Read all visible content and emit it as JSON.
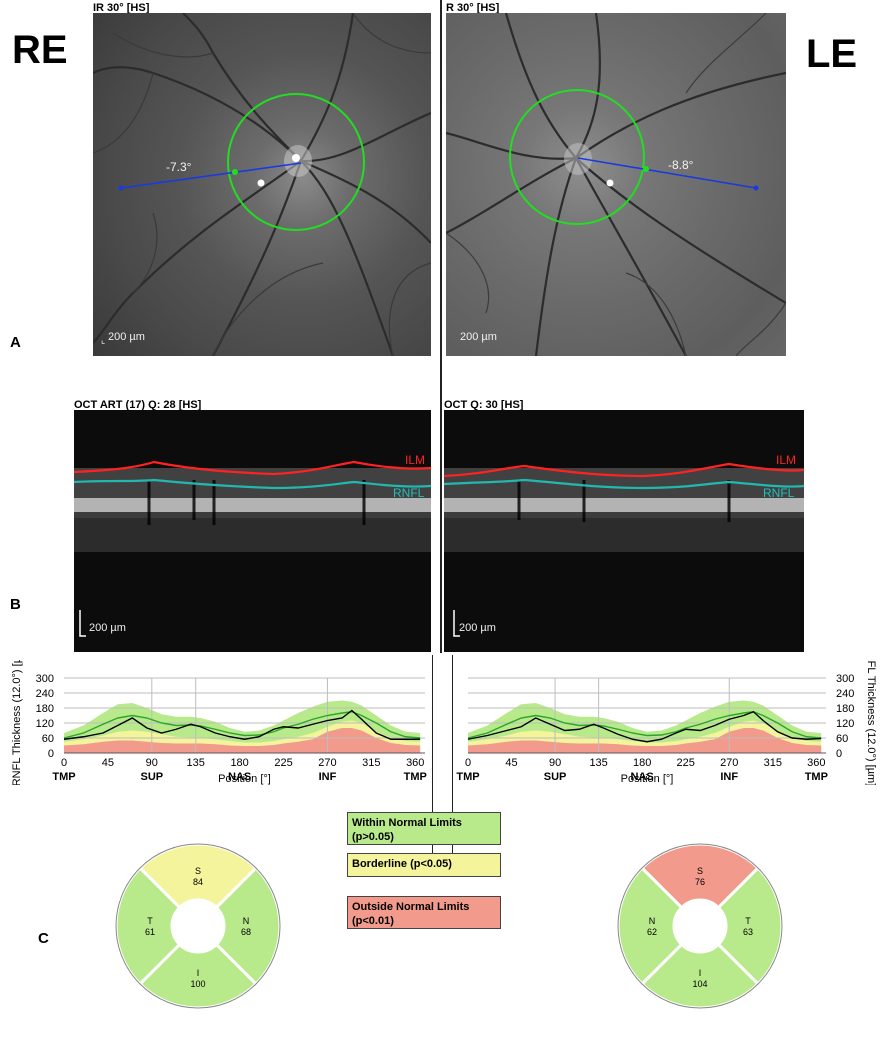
{
  "eyes": {
    "right": "RE",
    "left": "LE"
  },
  "panel_letters": {
    "a": "A",
    "b": "B",
    "c": "C"
  },
  "fundus": {
    "right": {
      "title": "IR 30° [HS]",
      "angle": "-7.3°",
      "scale": "200 µm"
    },
    "left": {
      "title": "R 30° [HS]",
      "angle": "-8.8°",
      "scale": "200 µm"
    }
  },
  "oct": {
    "right": {
      "title": "OCT ART (17) Q: 28 [HS]",
      "ilm": "ILM",
      "rnfl": "RNFL",
      "scale": "200 µm"
    },
    "left": {
      "title": "OCT Q: 30 [HS]",
      "ilm": "ILM",
      "rnfl": "RNFL",
      "scale": "200 µm"
    }
  },
  "chart_data": [
    {
      "type": "line",
      "eye": "RE",
      "xlabel": "Position [°]",
      "ylabel": "RNFL Thickness (12.0°) [µm]",
      "xlim": [
        0,
        370
      ],
      "ylim": [
        0,
        300
      ],
      "x_ticks": [
        0,
        45,
        90,
        135,
        180,
        225,
        270,
        315,
        360
      ],
      "y_ticks": [
        0,
        60,
        120,
        180,
        240,
        300
      ],
      "region_labels": [
        {
          "x": 0,
          "label": "TMP"
        },
        {
          "x": 90,
          "label": "SUP"
        },
        {
          "x": 180,
          "label": "NAS"
        },
        {
          "x": 270,
          "label": "INF"
        },
        {
          "x": 360,
          "label": "TMP"
        }
      ],
      "x": [
        0,
        20,
        40,
        55,
        70,
        85,
        100,
        115,
        130,
        140,
        155,
        170,
        185,
        200,
        215,
        225,
        240,
        255,
        270,
        285,
        295,
        305,
        320,
        335,
        350,
        365
      ],
      "bands": {
        "outside_upper": [
          30,
          35,
          45,
          50,
          50,
          45,
          40,
          38,
          38,
          38,
          35,
          30,
          28,
          28,
          32,
          38,
          45,
          55,
          85,
          100,
          100,
          90,
          60,
          40,
          32,
          30
        ],
        "borderline_upper": [
          45,
          55,
          70,
          85,
          90,
          85,
          75,
          65,
          62,
          60,
          55,
          48,
          42,
          42,
          48,
          55,
          65,
          80,
          105,
          125,
          130,
          120,
          85,
          60,
          48,
          45
        ],
        "normal_upper": [
          80,
          110,
          160,
          195,
          200,
          180,
          155,
          145,
          145,
          140,
          125,
          100,
          85,
          90,
          110,
          130,
          160,
          185,
          205,
          210,
          205,
          190,
          150,
          110,
          85,
          80
        ]
      },
      "series": [
        {
          "name": "Normal mean",
          "color": "#2aa52a",
          "values": [
            60,
            80,
            115,
            140,
            150,
            140,
            120,
            110,
            112,
            108,
            95,
            80,
            70,
            72,
            85,
            100,
            115,
            135,
            150,
            160,
            165,
            150,
            120,
            85,
            65,
            60
          ]
        },
        {
          "name": "Patient",
          "color": "#000000",
          "values": [
            55,
            65,
            80,
            110,
            140,
            100,
            80,
            95,
            115,
            105,
            80,
            65,
            55,
            65,
            95,
            105,
            100,
            115,
            130,
            140,
            170,
            135,
            80,
            55,
            55,
            55
          ]
        }
      ]
    },
    {
      "type": "line",
      "eye": "LE",
      "xlabel": "Position [°]",
      "ylabel": "RNFL Thickness (12.0°) [µm]",
      "xlim": [
        0,
        370
      ],
      "ylim": [
        0,
        300
      ],
      "x_ticks": [
        0,
        45,
        90,
        135,
        180,
        225,
        270,
        315,
        360
      ],
      "y_ticks": [
        0,
        60,
        120,
        180,
        240,
        300
      ],
      "region_labels": [
        {
          "x": 0,
          "label": "TMP"
        },
        {
          "x": 90,
          "label": "SUP"
        },
        {
          "x": 180,
          "label": "NAS"
        },
        {
          "x": 270,
          "label": "INF"
        },
        {
          "x": 360,
          "label": "TMP"
        }
      ],
      "x": [
        0,
        20,
        40,
        55,
        70,
        85,
        100,
        115,
        130,
        140,
        155,
        170,
        185,
        200,
        215,
        225,
        240,
        255,
        270,
        285,
        295,
        305,
        320,
        335,
        350,
        365
      ],
      "bands": {
        "outside_upper": [
          30,
          35,
          45,
          50,
          50,
          45,
          40,
          38,
          38,
          38,
          35,
          30,
          28,
          28,
          32,
          38,
          45,
          55,
          85,
          100,
          100,
          90,
          60,
          40,
          32,
          30
        ],
        "borderline_upper": [
          45,
          55,
          70,
          85,
          90,
          85,
          75,
          65,
          62,
          60,
          55,
          48,
          42,
          42,
          48,
          55,
          65,
          80,
          105,
          125,
          130,
          120,
          85,
          60,
          48,
          45
        ],
        "normal_upper": [
          80,
          110,
          160,
          195,
          200,
          180,
          155,
          145,
          145,
          140,
          125,
          100,
          85,
          90,
          110,
          130,
          160,
          185,
          205,
          210,
          205,
          190,
          150,
          110,
          85,
          80
        ]
      },
      "series": [
        {
          "name": "Normal mean",
          "color": "#2aa52a",
          "values": [
            60,
            80,
            115,
            140,
            150,
            140,
            120,
            110,
            112,
            108,
            95,
            80,
            70,
            72,
            85,
            100,
            115,
            135,
            150,
            160,
            165,
            150,
            120,
            85,
            65,
            60
          ]
        },
        {
          "name": "Patient",
          "color": "#000000",
          "values": [
            55,
            70,
            90,
            105,
            140,
            115,
            90,
            95,
            115,
            100,
            75,
            55,
            45,
            55,
            80,
            95,
            90,
            110,
            135,
            150,
            165,
            130,
            85,
            60,
            55,
            58
          ]
        }
      ]
    }
  ],
  "legend": [
    {
      "text": "Within Normal Limits (p>0.05)",
      "line1": "Within Normal Limits",
      "line2": "(p>0.05)",
      "color": "#b8ea8c"
    },
    {
      "text": "Borderline (p<0.05)",
      "line1": "Borderline (p<0.05)",
      "line2": "",
      "color": "#f4f49c"
    },
    {
      "text": "Outside Normal Limits (p<0.01)",
      "line1": "Outside Normal Limits",
      "line2": "(p<0.01)",
      "color": "#f29a8c"
    }
  ],
  "sectors": {
    "right": {
      "S": {
        "label": "S",
        "value": "84",
        "color": "#f4f49c"
      },
      "N": {
        "label": "N",
        "value": "68",
        "color": "#b8ea8c"
      },
      "I": {
        "label": "I",
        "value": "100",
        "color": "#b8ea8c"
      },
      "T": {
        "label": "T",
        "value": "61",
        "color": "#b8ea8c"
      }
    },
    "left": {
      "S": {
        "label": "S",
        "value": "76",
        "color": "#f29a8c"
      },
      "T": {
        "label": "T",
        "value": "63",
        "color": "#b8ea8c"
      },
      "I": {
        "label": "I",
        "value": "104",
        "color": "#b8ea8c"
      },
      "N": {
        "label": "N",
        "value": "62",
        "color": "#b8ea8c"
      }
    }
  }
}
